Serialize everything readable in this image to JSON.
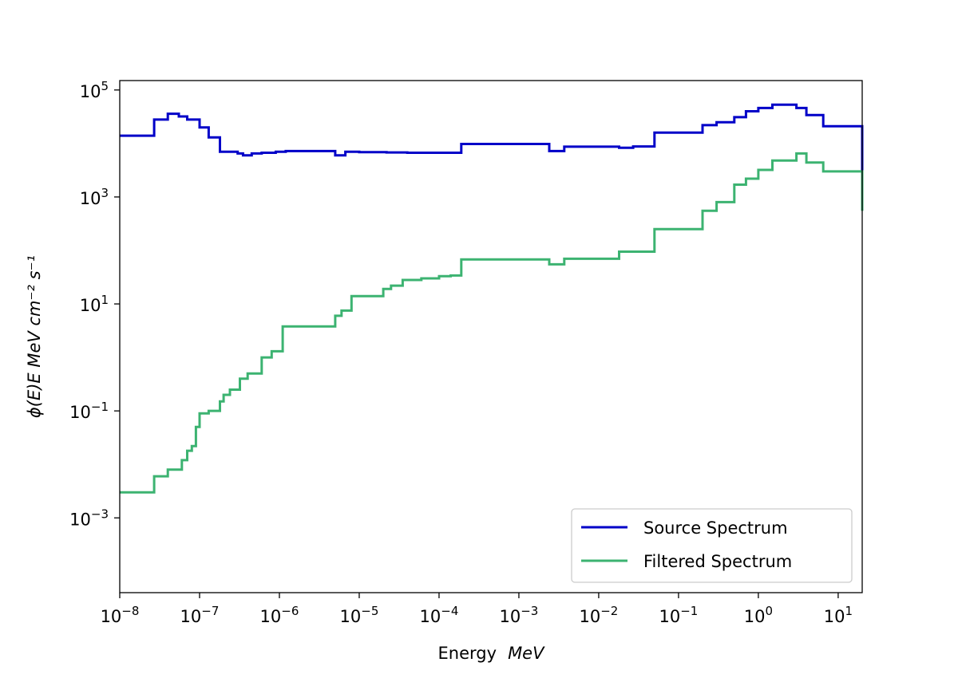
{
  "chart_data": {
    "type": "line",
    "xscale": "log",
    "yscale": "log",
    "xlim": [
      1e-08,
      20
    ],
    "ylim": [
      4e-05,
      150000
    ],
    "xlabel_text": "Energy",
    "xlabel_unit": "MeV",
    "ylabel": "ϕ(E)E  MeV cm⁻² s⁻¹",
    "grid": false,
    "legend_position": "bottom-right",
    "x_ticks": [
      {
        "base": "10",
        "exp": "−8"
      },
      {
        "base": "10",
        "exp": "−7"
      },
      {
        "base": "10",
        "exp": "−6"
      },
      {
        "base": "10",
        "exp": "−5"
      },
      {
        "base": "10",
        "exp": "−4"
      },
      {
        "base": "10",
        "exp": "−3"
      },
      {
        "base": "10",
        "exp": "−2"
      },
      {
        "base": "10",
        "exp": "−1"
      },
      {
        "base": "10",
        "exp": "0"
      },
      {
        "base": "10",
        "exp": "1"
      }
    ],
    "x_tick_values": [
      1e-08,
      1e-07,
      1e-06,
      1e-05,
      0.0001,
      0.001,
      0.01,
      0.1,
      1,
      10
    ],
    "y_ticks": [
      {
        "base": "10",
        "exp": "−3"
      },
      {
        "base": "10",
        "exp": "−1"
      },
      {
        "base": "10",
        "exp": "1"
      },
      {
        "base": "10",
        "exp": "3"
      },
      {
        "base": "10",
        "exp": "5"
      }
    ],
    "y_tick_values": [
      0.001,
      0.1,
      10,
      1000,
      100000
    ],
    "series": [
      {
        "name": "Source Spectrum",
        "color": "#0000c8",
        "x": [
          1e-08,
          2.7e-08,
          4e-08,
          5.5e-08,
          7e-08,
          1e-07,
          1.3e-07,
          1.8e-07,
          3e-07,
          3.5e-07,
          4.5e-07,
          6e-07,
          9e-07,
          1.2e-06,
          5e-06,
          6.7e-06,
          1e-05,
          2.2e-05,
          4e-05,
          0.00019,
          0.0024,
          0.0037,
          0.018,
          0.027,
          0.05,
          0.2,
          0.3,
          0.5,
          0.7,
          1.0,
          1.5,
          3.0,
          4.0,
          6.5,
          20
        ],
        "y": [
          14000,
          28000,
          36000,
          32000,
          28000,
          20000,
          13000,
          7000,
          6500,
          6000,
          6500,
          6700,
          7000,
          7200,
          6000,
          7000,
          6900,
          6800,
          6700,
          9800,
          7200,
          8700,
          8300,
          8800,
          16000,
          22000,
          25000,
          31000,
          40000,
          46000,
          53000,
          46000,
          34000,
          21000,
          2400
        ]
      },
      {
        "name": "Filtered Spectrum",
        "color": "#3cb371",
        "x": [
          1e-08,
          2.7e-08,
          4e-08,
          6e-08,
          7e-08,
          8e-08,
          9e-08,
          1e-07,
          1.3e-07,
          1.8e-07,
          2e-07,
          2.4e-07,
          3.2e-07,
          4e-07,
          6e-07,
          8e-07,
          1.1e-06,
          5e-06,
          6e-06,
          8e-06,
          2e-05,
          2.5e-05,
          3.5e-05,
          6e-05,
          0.0001,
          0.00014,
          0.00019,
          0.0024,
          0.0037,
          0.018,
          0.05,
          0.2,
          0.3,
          0.5,
          0.7,
          1.0,
          1.5,
          3.0,
          4.0,
          6.5,
          20
        ],
        "y": [
          0.003,
          0.006,
          0.008,
          0.012,
          0.018,
          0.022,
          0.05,
          0.09,
          0.1,
          0.15,
          0.2,
          0.25,
          0.4,
          0.5,
          1.0,
          1.3,
          3.8,
          6.0,
          7.5,
          14,
          19,
          22,
          28,
          30,
          33,
          34,
          68,
          55,
          70,
          95,
          250,
          550,
          800,
          1700,
          2200,
          3200,
          4800,
          6500,
          4400,
          3000,
          550
        ]
      }
    ]
  }
}
